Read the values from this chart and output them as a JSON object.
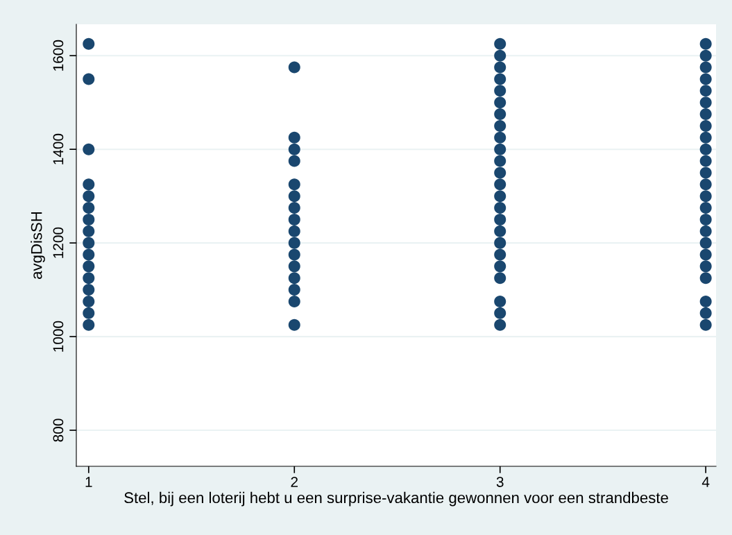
{
  "chart_data": {
    "type": "scatter",
    "xlabel": "Stel, bij een loterij hebt u een surprise-vakantie gewonnen voor een strandbeste",
    "ylabel": "avgDisSH",
    "series": [
      {
        "color": "#1a476f",
        "x": [
          1,
          1,
          1,
          1,
          1,
          1,
          1,
          1,
          1,
          1,
          1,
          1,
          1,
          1,
          1,
          1
        ],
        "values": [
          1625,
          1550,
          1400,
          1325,
          1300,
          1275,
          1250,
          1225,
          1200,
          1175,
          1150,
          1125,
          1100,
          1075,
          1050,
          1025
        ]
      },
      {
        "color": "#1a476f",
        "x": [
          2,
          2,
          2,
          2,
          2,
          2,
          2,
          2,
          2,
          2,
          2,
          2,
          2,
          2,
          2,
          2
        ],
        "values": [
          1575,
          1425,
          1400,
          1375,
          1325,
          1300,
          1275,
          1250,
          1225,
          1200,
          1175,
          1150,
          1125,
          1100,
          1075,
          1025
        ]
      },
      {
        "color": "#1a476f",
        "x": [
          3,
          3,
          3,
          3,
          3,
          3,
          3,
          3,
          3,
          3,
          3,
          3,
          3,
          3,
          3,
          3,
          3,
          3,
          3,
          3,
          3,
          3,
          3,
          3
        ],
        "values": [
          1625,
          1600,
          1575,
          1550,
          1525,
          1500,
          1475,
          1450,
          1425,
          1400,
          1375,
          1350,
          1325,
          1300,
          1275,
          1250,
          1225,
          1200,
          1175,
          1150,
          1125,
          1075,
          1050,
          1025
        ]
      },
      {
        "color": "#1a476f",
        "x": [
          4,
          4,
          4,
          4,
          4,
          4,
          4,
          4,
          4,
          4,
          4,
          4,
          4,
          4,
          4,
          4,
          4,
          4,
          4,
          4,
          4,
          4,
          4,
          4
        ],
        "values": [
          1625,
          1600,
          1575,
          1550,
          1525,
          1500,
          1475,
          1450,
          1425,
          1400,
          1375,
          1350,
          1325,
          1300,
          1275,
          1250,
          1225,
          1200,
          1175,
          1150,
          1125,
          1075,
          1050,
          1025
        ]
      }
    ],
    "xlim": [
      0.94,
      4.05
    ],
    "xticks": [
      1,
      2,
      3,
      4
    ],
    "ylim": [
      723,
      1667
    ],
    "yticks": [
      800,
      1000,
      1200,
      1400,
      1600
    ],
    "grid": "y",
    "marker": "circle"
  }
}
